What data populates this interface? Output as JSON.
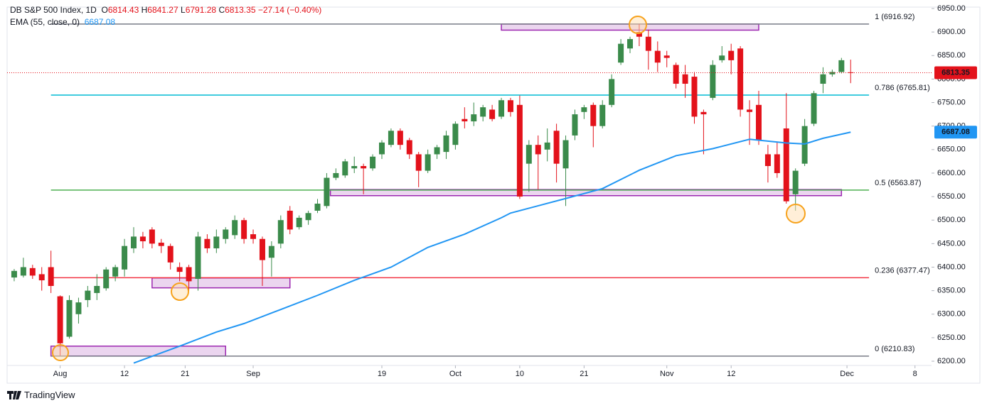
{
  "chart_data": {
    "type": "candlestick",
    "title": "DB S&P 500 Index, 1D",
    "legend": [
      {
        "label": "O",
        "value": 6814.43
      },
      {
        "label": "H",
        "value": 6841.27
      },
      {
        "label": "L",
        "value": 6791.28
      },
      {
        "label": "C",
        "value": 6813.35
      }
    ],
    "change": "−27.14 (−0.40%)",
    "up_color": "#3b8b4b",
    "down_color": "#e3121b",
    "candles": {
      "open": [
        6378,
        6382,
        6398,
        6385,
        6400,
        6338,
        6252,
        6300,
        6330,
        6345,
        6355,
        6380,
        6395,
        6440,
        6465,
        6480,
        6452,
        6445,
        6400,
        6400,
        6375,
        6460,
        6440,
        6460,
        6468,
        6500,
        6470,
        6460,
        6420,
        6450,
        6520,
        6485,
        6500,
        6520,
        6530,
        6590,
        6595,
        6610,
        6615,
        6610,
        6640,
        6660,
        6690,
        6670,
        6640,
        6605,
        6640,
        6645,
        6660,
        6715,
        6710,
        6720,
        6735,
        6720,
        6755,
        6745,
        6620,
        6660,
        6650,
        6690,
        6610,
        6680,
        6730,
        6745,
        6700,
        6745,
        6835,
        6865,
        6900,
        6890,
        6860,
        6850,
        6830,
        6810,
        6805,
        6730,
        6760,
        6840,
        6860,
        6865,
        6735,
        6745,
        6640,
        6640,
        6695,
        6555,
        6620,
        6705,
        6790,
        6810,
        6815,
        6814.43
      ],
      "high": [
        6396,
        6420,
        6405,
        6400,
        6435,
        6340,
        6340,
        6335,
        6360,
        6385,
        6400,
        6405,
        6460,
        6485,
        6475,
        6485,
        6460,
        6450,
        6410,
        6405,
        6475,
        6470,
        6480,
        6485,
        6510,
        6505,
        6480,
        6465,
        6455,
        6510,
        6530,
        6510,
        6520,
        6545,
        6600,
        6610,
        6630,
        6635,
        6620,
        6640,
        6670,
        6695,
        6695,
        6675,
        6645,
        6650,
        6660,
        6690,
        6710,
        6740,
        6750,
        6745,
        6745,
        6760,
        6760,
        6765,
        6670,
        6680,
        6695,
        6705,
        6680,
        6735,
        6745,
        6750,
        6755,
        6810,
        6885,
        6890,
        6917,
        6905,
        6880,
        6860,
        6835,
        6830,
        6815,
        6735,
        6840,
        6870,
        6875,
        6870,
        6755,
        6775,
        6660,
        6665,
        6770,
        6610,
        6715,
        6775,
        6825,
        6820,
        6845,
        6841.27
      ],
      "low": [
        6370,
        6378,
        6375,
        6350,
        6345,
        6212,
        6248,
        6280,
        6315,
        6330,
        6350,
        6370,
        6380,
        6430,
        6440,
        6440,
        6430,
        6395,
        6370,
        6350,
        6350,
        6430,
        6430,
        6450,
        6460,
        6450,
        6450,
        6360,
        6380,
        6440,
        6470,
        6480,
        6490,
        6515,
        6525,
        6585,
        6590,
        6600,
        6555,
        6605,
        6630,
        6655,
        6650,
        6630,
        6570,
        6600,
        6630,
        6630,
        6650,
        6695,
        6700,
        6710,
        6710,
        6715,
        6720,
        6545,
        6560,
        6565,
        6625,
        6580,
        6530,
        6670,
        6715,
        6655,
        6695,
        6740,
        6830,
        6855,
        6870,
        6820,
        6815,
        6825,
        6780,
        6760,
        6705,
        6640,
        6755,
        6835,
        6810,
        6720,
        6660,
        6660,
        6580,
        6590,
        6535,
        6520,
        6615,
        6700,
        6770,
        6805,
        6812,
        6791.28
      ],
      "close": [
        6392,
        6400,
        6382,
        6372,
        6360,
        6238,
        6330,
        6325,
        6350,
        6360,
        6395,
        6400,
        6445,
        6465,
        6455,
        6450,
        6445,
        6410,
        6390,
        6370,
        6465,
        6440,
        6465,
        6480,
        6500,
        6460,
        6460,
        6415,
        6445,
        6500,
        6480,
        6505,
        6515,
        6535,
        6590,
        6600,
        6625,
        6615,
        6610,
        6635,
        6665,
        6690,
        6660,
        6640,
        6605,
        6640,
        6655,
        6680,
        6705,
        6710,
        6725,
        6740,
        6715,
        6755,
        6730,
        6550,
        6660,
        6640,
        6665,
        6620,
        6670,
        6725,
        6740,
        6700,
        6745,
        6800,
        6875,
        6885,
        6890,
        6860,
        6835,
        6845,
        6790,
        6790,
        6720,
        6725,
        6830,
        6850,
        6840,
        6735,
        6730,
        6670,
        6615,
        6600,
        6540,
        6605,
        6700,
        6770,
        6810,
        6815,
        6840,
        6813.35
      ]
    },
    "indicator": {
      "name": "EMA (55, close, 0)",
      "color": "#2196f3",
      "x": [
        13,
        18,
        22,
        25,
        29,
        33,
        37,
        41,
        45,
        49,
        53,
        54,
        60,
        64,
        68,
        72,
        76,
        80,
        84,
        86,
        88,
        91
      ],
      "values": [
        6196,
        6232,
        6262,
        6280,
        6310,
        6340,
        6372,
        6400,
        6442,
        6470,
        6505,
        6515,
        6546,
        6567,
        6606,
        6637,
        6652,
        6672,
        6664,
        6662,
        6674,
        6687.08
      ]
    },
    "levels": [
      {
        "label": "1 (6916.92)",
        "value": 6916.92,
        "color": "#787b86"
      },
      {
        "label": "0.786 (6765.81)",
        "value": 6765.81,
        "color": "#00bcd4"
      },
      {
        "label": "0.5 (6563.87)",
        "value": 6563.87,
        "color": "#4caf50"
      },
      {
        "label": "0.236 (6377.47)",
        "value": 6377.47,
        "color": "#f23645"
      },
      {
        "label": "0 (6210.83)",
        "value": 6210.83,
        "color": "#787b86"
      }
    ],
    "levels_x": [
      4,
      93
    ],
    "zones": [
      {
        "x": [
          53,
          81
        ],
        "y": [
          6904,
          6917
        ]
      },
      {
        "x": [
          34.4,
          90
        ],
        "y": [
          6552,
          6565
        ]
      },
      {
        "x": [
          15,
          30
        ],
        "y": [
          6356,
          6377
        ]
      },
      {
        "x": [
          4,
          23
        ],
        "y": [
          6211,
          6232
        ]
      }
    ],
    "xlim": [
      -0.77,
      99.8
    ],
    "xticks": [
      {
        "value": 5,
        "label": "Aug"
      },
      {
        "value": 12,
        "label": "12"
      },
      {
        "value": 18.6,
        "label": "21"
      },
      {
        "value": 26,
        "label": "Sep"
      },
      {
        "value": 40,
        "label": "19"
      },
      {
        "value": 48,
        "label": "Oct"
      },
      {
        "value": 55,
        "label": "10"
      },
      {
        "value": 62,
        "label": "21"
      },
      {
        "value": 71,
        "label": "Nov"
      },
      {
        "value": 78,
        "label": "12"
      },
      {
        "value": 90.6,
        "label": "Dec"
      },
      {
        "value": 98,
        "label": "8"
      }
    ],
    "ylim": [
      6191,
      6953
    ],
    "yticks": [
      {
        "value": 6200,
        "label": "6200.00"
      },
      {
        "value": 6250,
        "label": "6250.00"
      },
      {
        "value": 6300,
        "label": "6300.00"
      },
      {
        "value": 6350,
        "label": "6350.00"
      },
      {
        "value": 6400,
        "label": "6400.00"
      },
      {
        "value": 6450,
        "label": "6450.00"
      },
      {
        "value": 6500,
        "label": "6500.00"
      },
      {
        "value": 6550,
        "label": "6550.00"
      },
      {
        "value": 6600,
        "label": "6600.00"
      },
      {
        "value": 6650,
        "label": "6650.00"
      },
      {
        "value": 6700,
        "label": "6700.00"
      },
      {
        "value": 6750,
        "label": "6750.00"
      },
      {
        "value": 6800,
        "label": "6800.00"
      },
      {
        "value": 6850,
        "label": "6850.00"
      },
      {
        "value": 6900,
        "label": "6900.00"
      },
      {
        "value": 6950,
        "label": "6950.00"
      }
    ],
    "grid": false
  },
  "branding": "TradingView"
}
